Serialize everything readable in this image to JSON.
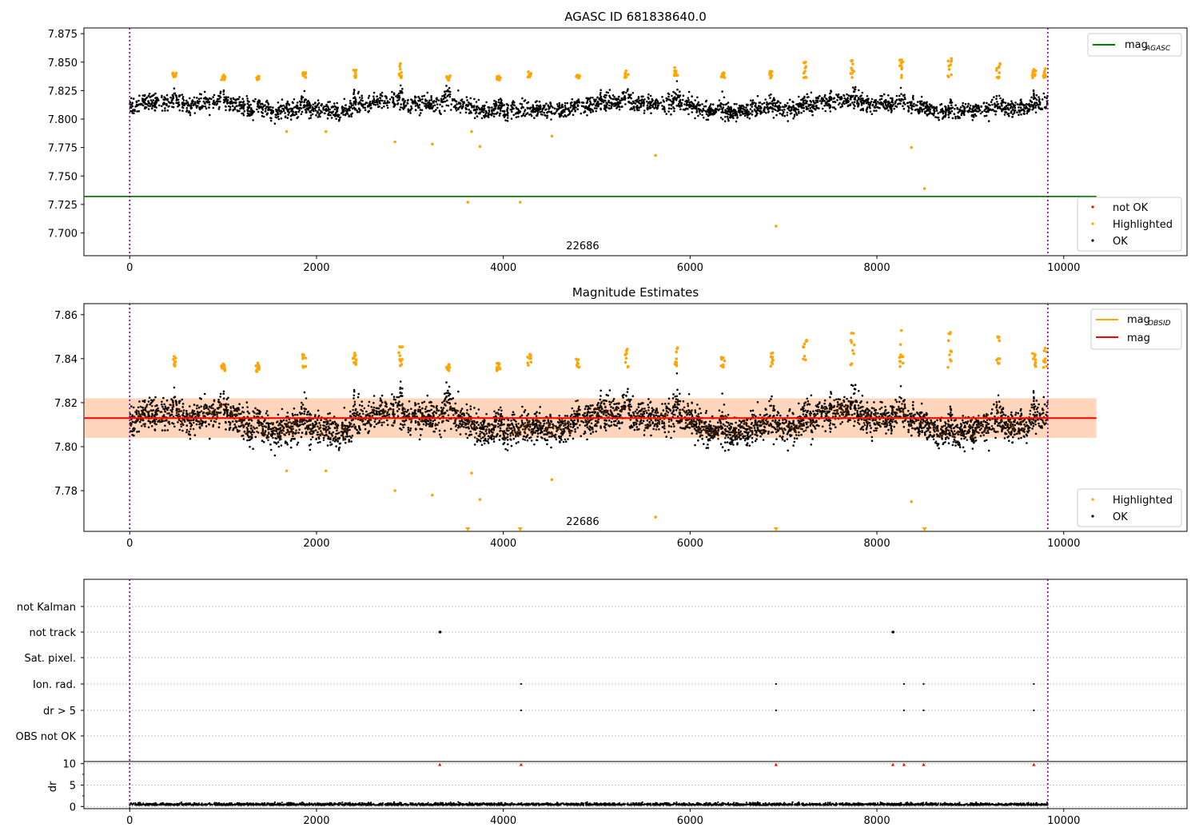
{
  "chart_data": [
    {
      "type": "scatter",
      "title": "AGASC ID 681838640.0",
      "xlabel": "",
      "ylabel": "",
      "xlim": [
        -490,
        11320
      ],
      "ylim": [
        7.68,
        7.88
      ],
      "xticks": [
        "0",
        "2000",
        "4000",
        "6000",
        "8000",
        "10000"
      ],
      "yticks": [
        "7.700",
        "7.725",
        "7.750",
        "7.775",
        "7.800",
        "7.825",
        "7.850",
        "7.875"
      ],
      "grid": false,
      "obsid_label": "22686",
      "obsid_label_x": 4850,
      "obs_boundaries": [
        0,
        9830
      ],
      "series": [
        {
          "name": "mag",
          "name_sub": "AGASC",
          "kind": "hline",
          "y": 7.732,
          "x_range": [
            -490,
            10350
          ],
          "color": "#008000"
        },
        {
          "name": "not OK",
          "kind": "points",
          "color": "#ff0000",
          "points": []
        },
        {
          "name": "Highlighted",
          "kind": "points",
          "color": "#ffa500",
          "points": [
            [
              1680,
              7.789
            ],
            [
              2100,
              7.789
            ],
            [
              2840,
              7.78
            ],
            [
              3240,
              7.778
            ],
            [
              3660,
              7.789
            ],
            [
              3750,
              7.776
            ],
            [
              4520,
              7.785
            ],
            [
              5630,
              7.768
            ],
            [
              8370,
              7.775
            ],
            [
              8510,
              7.739
            ],
            [
              3620,
              7.727
            ],
            [
              4180,
              7.727
            ],
            [
              6920,
              7.706
            ]
          ],
          "peaks": [
            [
              480,
              7.836,
              7.841
            ],
            [
              1000,
              7.834,
              7.839
            ],
            [
              1370,
              7.834,
              7.838
            ],
            [
              1870,
              7.836,
              7.842
            ],
            [
              2410,
              7.836,
              7.843
            ],
            [
              2900,
              7.836,
              7.85
            ],
            [
              3410,
              7.834,
              7.838
            ],
            [
              3950,
              7.834,
              7.838
            ],
            [
              4280,
              7.836,
              7.842
            ],
            [
              4800,
              7.836,
              7.84
            ],
            [
              5320,
              7.836,
              7.845
            ],
            [
              5850,
              7.836,
              7.846
            ],
            [
              6350,
              7.836,
              7.841
            ],
            [
              6870,
              7.836,
              7.843
            ],
            [
              7230,
              7.836,
              7.851
            ],
            [
              7740,
              7.836,
              7.853
            ],
            [
              8260,
              7.836,
              7.853
            ],
            [
              8780,
              7.836,
              7.854
            ],
            [
              9300,
              7.836,
              7.85
            ],
            [
              9680,
              7.836,
              7.845
            ],
            [
              9800,
              7.836,
              7.845
            ]
          ]
        },
        {
          "name": "OK",
          "kind": "band",
          "color": "#000000",
          "center": 7.811,
          "spread": 0.007,
          "x_range": [
            0,
            9830
          ],
          "bumps": [
            480,
            1000,
            1370,
            1870,
            2410,
            2900,
            3410,
            3950,
            4800,
            5320,
            5850,
            6350,
            6870,
            7230,
            7740,
            8260,
            8780,
            9300,
            9680
          ]
        }
      ],
      "legend_top": "top-right",
      "legend_bottom": "lower-right"
    },
    {
      "type": "scatter",
      "title": "Magnitude Estimates",
      "xlabel": "",
      "ylabel": "",
      "xlim": [
        -490,
        11320
      ],
      "ylim": [
        7.7615,
        7.865
      ],
      "xticks": [
        "0",
        "2000",
        "4000",
        "6000",
        "8000",
        "10000"
      ],
      "yticks": [
        "7.78",
        "7.80",
        "7.82",
        "7.84",
        "7.86"
      ],
      "grid": false,
      "obsid_label": "22686",
      "obsid_label_x": 4850,
      "obs_boundaries": [
        0,
        9830
      ],
      "series": [
        {
          "name": "mag",
          "name_sub": "OBSID",
          "kind": "hline",
          "y": 7.813,
          "x_range": [
            0,
            9830
          ],
          "color": "#ffa500"
        },
        {
          "name": "mag",
          "kind": "hline",
          "y": 7.813,
          "x_range": [
            -490,
            10350
          ],
          "color": "#ff0000",
          "band": [
            7.804,
            7.822
          ]
        },
        {
          "name": "Highlighted",
          "kind": "points",
          "color": "#ffa500",
          "points": [
            [
              1680,
              7.789
            ],
            [
              2100,
              7.789
            ],
            [
              2840,
              7.78
            ],
            [
              3240,
              7.778
            ],
            [
              3660,
              7.788
            ],
            [
              3750,
              7.776
            ],
            [
              4520,
              7.785
            ],
            [
              5630,
              7.768
            ],
            [
              8370,
              7.775
            ]
          ],
          "triangles": [
            3620,
            4180,
            6920,
            8510
          ],
          "peaks": [
            [
              480,
              7.836,
              7.841
            ],
            [
              1000,
              7.834,
              7.839
            ],
            [
              1370,
              7.834,
              7.838
            ],
            [
              1870,
              7.836,
              7.842
            ],
            [
              2410,
              7.836,
              7.843
            ],
            [
              2900,
              7.836,
              7.85
            ],
            [
              3410,
              7.834,
              7.838
            ],
            [
              3950,
              7.834,
              7.838
            ],
            [
              4280,
              7.836,
              7.842
            ],
            [
              4800,
              7.836,
              7.84
            ],
            [
              5320,
              7.836,
              7.845
            ],
            [
              5850,
              7.836,
              7.846
            ],
            [
              6350,
              7.836,
              7.841
            ],
            [
              6870,
              7.836,
              7.843
            ],
            [
              7230,
              7.836,
              7.851
            ],
            [
              7740,
              7.836,
              7.853
            ],
            [
              8260,
              7.836,
              7.853
            ],
            [
              8780,
              7.836,
              7.854
            ],
            [
              9300,
              7.836,
              7.85
            ],
            [
              9680,
              7.836,
              7.845
            ],
            [
              9800,
              7.836,
              7.845
            ]
          ]
        },
        {
          "name": "OK",
          "kind": "band",
          "color": "#000000",
          "center": 7.811,
          "spread": 0.007,
          "x_range": [
            0,
            9830
          ],
          "bumps": [
            480,
            1000,
            1370,
            1870,
            2410,
            2900,
            3410,
            3950,
            4800,
            5320,
            5850,
            6350,
            6870,
            7230,
            7740,
            8260,
            8780,
            9300,
            9680
          ]
        }
      ],
      "legend_top": "top-right",
      "legend_bottom": "lower-right"
    },
    {
      "type": "scatter",
      "title": "",
      "xlabel": "",
      "xlim": [
        -490,
        11320
      ],
      "xticks": [
        "0",
        "2000",
        "4000",
        "6000",
        "8000",
        "10000"
      ],
      "obs_boundaries": [
        0,
        9830
      ],
      "flag_rows": [
        "not Kalman",
        "not track",
        "Sat. pixel.",
        "Ion. rad.",
        "dr > 5",
        "OBS not OK"
      ],
      "flags": {
        "not track": [
          3320,
          3325,
          8170,
          8175
        ],
        "Ion. rad.": [
          4190,
          6920,
          8290,
          8500,
          9680
        ],
        "dr > 5": [
          4190,
          6920,
          8290,
          8500,
          9680
        ]
      },
      "dr_panel": {
        "ylabel": "dr",
        "yticks": [
          "0",
          "5",
          "10"
        ],
        "ylim": [
          -0.5,
          10.5
        ],
        "baseline": 0.3,
        "spikes_at_10": [
          3320,
          4190,
          6920,
          8170,
          8290,
          8500,
          9680
        ]
      }
    }
  ]
}
